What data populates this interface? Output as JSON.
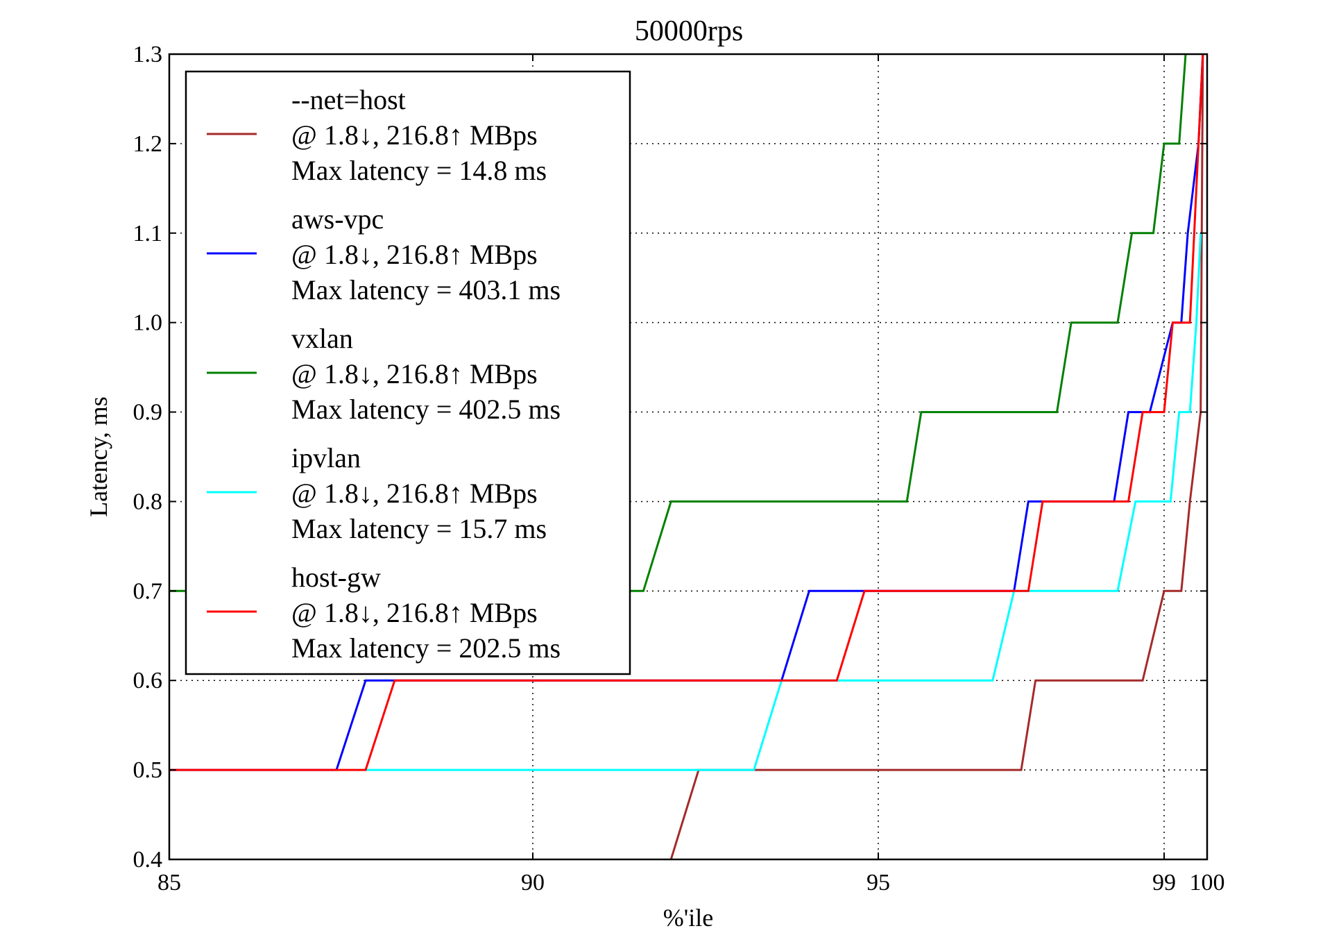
{
  "chart_data": {
    "type": "line",
    "title": "50000rps",
    "xlabel": "%'ile",
    "ylabel": "Latency, ms",
    "xlim": [
      85,
      100
    ],
    "ylim": [
      0.4,
      1.3
    ],
    "x_scale": "percentile (stretched near 100)",
    "x_ticks": [
      {
        "value": 85,
        "label": "85"
      },
      {
        "value": 90,
        "label": "90"
      },
      {
        "value": 95,
        "label": "95"
      },
      {
        "value": 99,
        "label": "99"
      },
      {
        "value": 100,
        "label": "100"
      }
    ],
    "y_ticks": [
      {
        "value": 0.4,
        "label": "0.4"
      },
      {
        "value": 0.5,
        "label": "0.5"
      },
      {
        "value": 0.6,
        "label": "0.6"
      },
      {
        "value": 0.7,
        "label": "0.7"
      },
      {
        "value": 0.8,
        "label": "0.8"
      },
      {
        "value": 0.9,
        "label": "0.9"
      },
      {
        "value": 1.0,
        "label": "1.0"
      },
      {
        "value": 1.1,
        "label": "1.1"
      },
      {
        "value": 1.2,
        "label": "1.2"
      },
      {
        "value": 1.3,
        "label": "1.3"
      }
    ],
    "grid": true,
    "legend_position": "top-left",
    "series": [
      {
        "name": "--net=host",
        "color": "#a52a2a",
        "legend_lines": [
          "--net=host",
          "@ 1.8↓, 216.8↑ MBps",
          "Max latency = 14.8 ms"
        ],
        "points": [
          [
            92.0,
            0.4
          ],
          [
            92.4,
            0.5
          ],
          [
            97.0,
            0.5
          ],
          [
            97.2,
            0.6
          ],
          [
            98.7,
            0.6
          ],
          [
            99.0,
            0.7
          ],
          [
            99.4,
            0.7
          ],
          [
            99.6,
            0.8
          ],
          [
            99.85,
            0.9
          ],
          [
            99.9,
            1.3
          ]
        ]
      },
      {
        "name": "aws-vpc",
        "color": "#0000ff",
        "legend_lines": [
          "aws-vpc",
          "@ 1.8↓, 216.8↑ MBps",
          "Max latency = 403.1 ms"
        ],
        "points": [
          [
            85,
            0.5
          ],
          [
            87.3,
            0.5
          ],
          [
            87.7,
            0.6
          ],
          [
            93.6,
            0.6
          ],
          [
            94.0,
            0.7
          ],
          [
            96.9,
            0.7
          ],
          [
            97.1,
            0.8
          ],
          [
            98.3,
            0.8
          ],
          [
            98.5,
            0.9
          ],
          [
            98.8,
            0.9
          ],
          [
            99.2,
            1.0
          ],
          [
            99.4,
            1.0
          ],
          [
            99.55,
            1.1
          ],
          [
            99.8,
            1.2
          ],
          [
            99.9,
            1.3
          ]
        ]
      },
      {
        "name": "vxlan",
        "color": "#008000",
        "legend_lines": [
          "vxlan",
          "@ 1.8↓, 216.8↑ MBps",
          "Max latency = 402.5 ms"
        ],
        "points": [
          [
            85,
            0.7
          ],
          [
            91.6,
            0.7
          ],
          [
            92.0,
            0.8
          ],
          [
            95.4,
            0.8
          ],
          [
            95.6,
            0.9
          ],
          [
            97.5,
            0.9
          ],
          [
            97.7,
            1.0
          ],
          [
            98.35,
            1.0
          ],
          [
            98.55,
            1.1
          ],
          [
            98.85,
            1.1
          ],
          [
            99.0,
            1.2
          ],
          [
            99.35,
            1.2
          ],
          [
            99.5,
            1.3
          ]
        ]
      },
      {
        "name": "ipvlan",
        "color": "#00ffff",
        "legend_lines": [
          "ipvlan",
          "@ 1.8↓, 216.8↑ MBps",
          "Max latency = 15.7 ms"
        ],
        "points": [
          [
            87.7,
            0.5
          ],
          [
            93.2,
            0.5
          ],
          [
            93.6,
            0.6
          ],
          [
            96.6,
            0.6
          ],
          [
            96.9,
            0.7
          ],
          [
            98.35,
            0.7
          ],
          [
            98.6,
            0.8
          ],
          [
            99.15,
            0.8
          ],
          [
            99.35,
            0.9
          ],
          [
            99.6,
            0.9
          ],
          [
            99.75,
            1.0
          ],
          [
            99.85,
            1.1
          ]
        ]
      },
      {
        "name": "host-gw",
        "color": "#ff0000",
        "legend_lines": [
          "host-gw",
          "@ 1.8↓, 216.8↑ MBps",
          "Max latency = 202.5 ms"
        ],
        "points": [
          [
            85,
            0.5
          ],
          [
            87.7,
            0.5
          ],
          [
            88.1,
            0.6
          ],
          [
            94.4,
            0.6
          ],
          [
            94.8,
            0.7
          ],
          [
            97.1,
            0.7
          ],
          [
            97.3,
            0.8
          ],
          [
            98.5,
            0.8
          ],
          [
            98.7,
            0.9
          ],
          [
            99.0,
            0.9
          ],
          [
            99.2,
            1.0
          ],
          [
            99.6,
            1.0
          ],
          [
            99.8,
            1.2
          ],
          [
            99.9,
            1.3
          ]
        ]
      }
    ]
  }
}
